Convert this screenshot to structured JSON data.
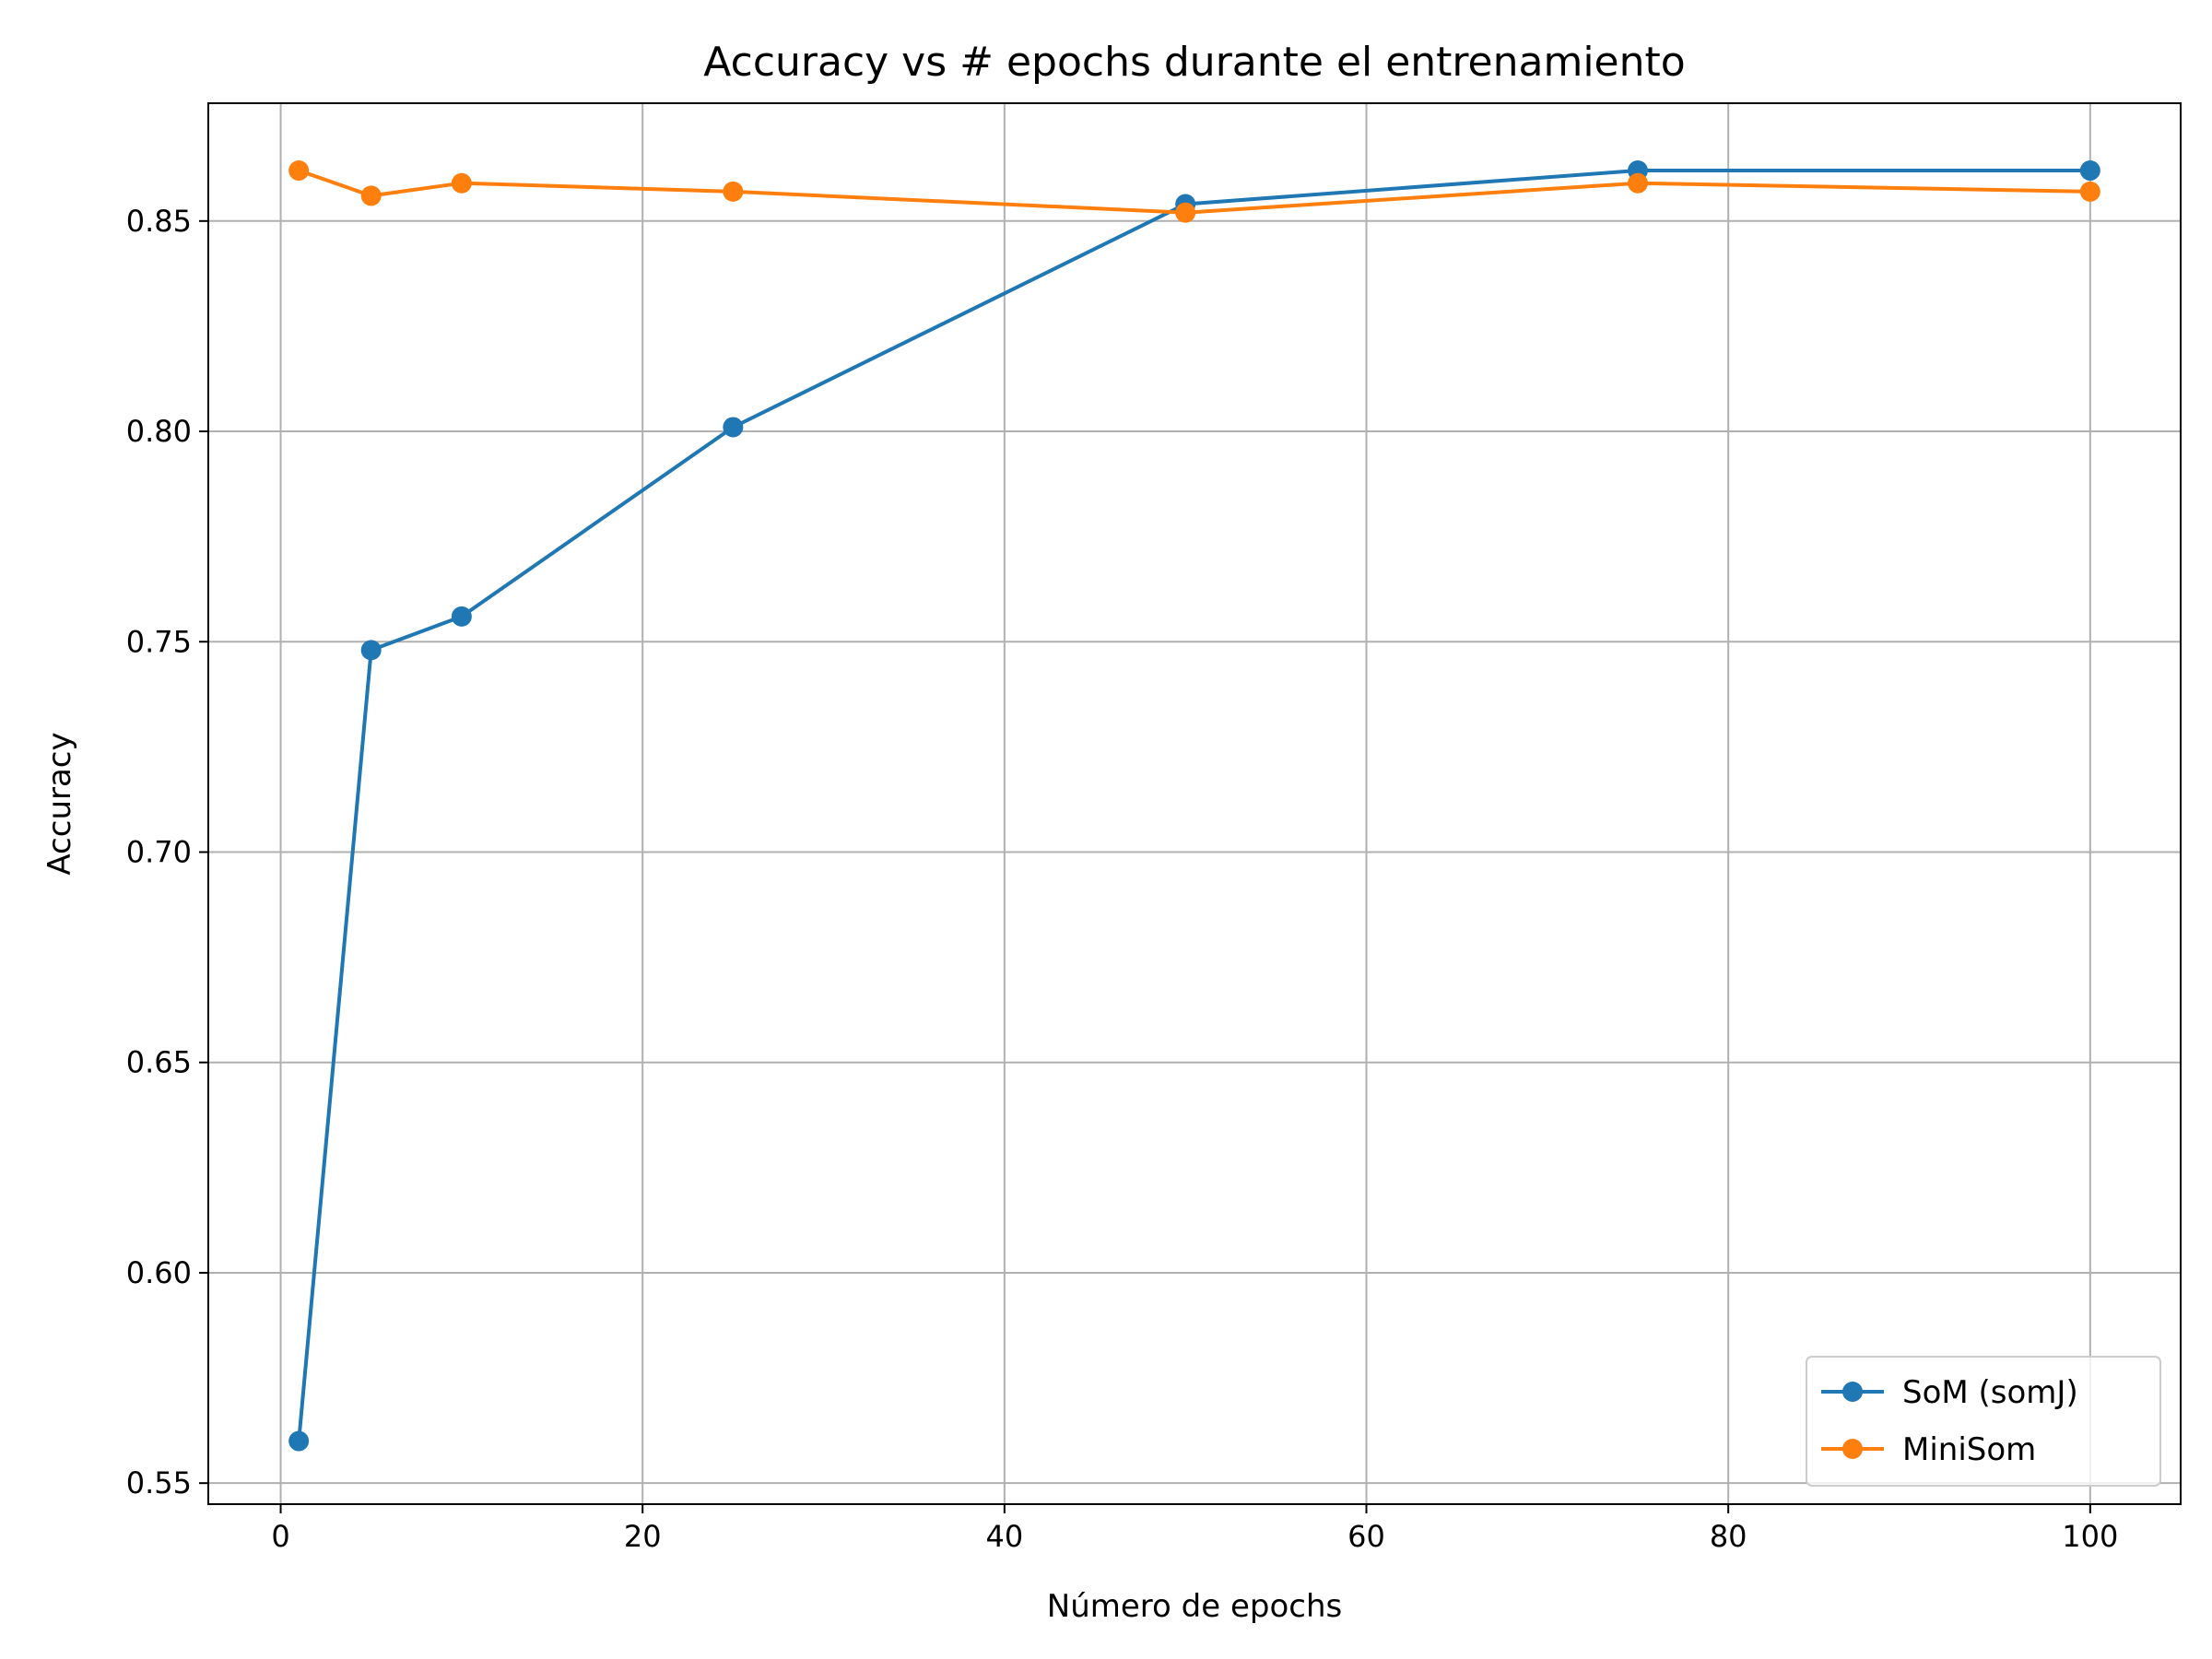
{
  "chart_data": {
    "type": "line",
    "title": "Accuracy vs # epochs durante el entrenamiento",
    "xlabel": "Número de epochs",
    "ylabel": "Accuracy",
    "xlim": [
      -4,
      105
    ],
    "ylim": [
      0.545,
      0.878
    ],
    "xticks": [
      0,
      20,
      40,
      60,
      80,
      100
    ],
    "xtick_labels": [
      "0",
      "20",
      "40",
      "60",
      "80",
      "100"
    ],
    "yticks": [
      0.55,
      0.6,
      0.65,
      0.7,
      0.75,
      0.8,
      0.85
    ],
    "ytick_labels": [
      "0.55",
      "0.60",
      "0.65",
      "0.70",
      "0.75",
      "0.80",
      "0.85"
    ],
    "grid": true,
    "legend_position": "lower-right",
    "series": [
      {
        "name": "SoM (somJ)",
        "color": "#1f77b4",
        "marker": "circle",
        "x": [
          1,
          5,
          10,
          25,
          50,
          75,
          100
        ],
        "y": [
          0.56,
          0.748,
          0.756,
          0.801,
          0.854,
          0.862,
          0.862
        ]
      },
      {
        "name": "MiniSom",
        "color": "#ff7f0e",
        "marker": "circle",
        "x": [
          1,
          5,
          10,
          25,
          50,
          75,
          100
        ],
        "y": [
          0.862,
          0.856,
          0.859,
          0.857,
          0.852,
          0.859,
          0.857
        ]
      }
    ]
  }
}
